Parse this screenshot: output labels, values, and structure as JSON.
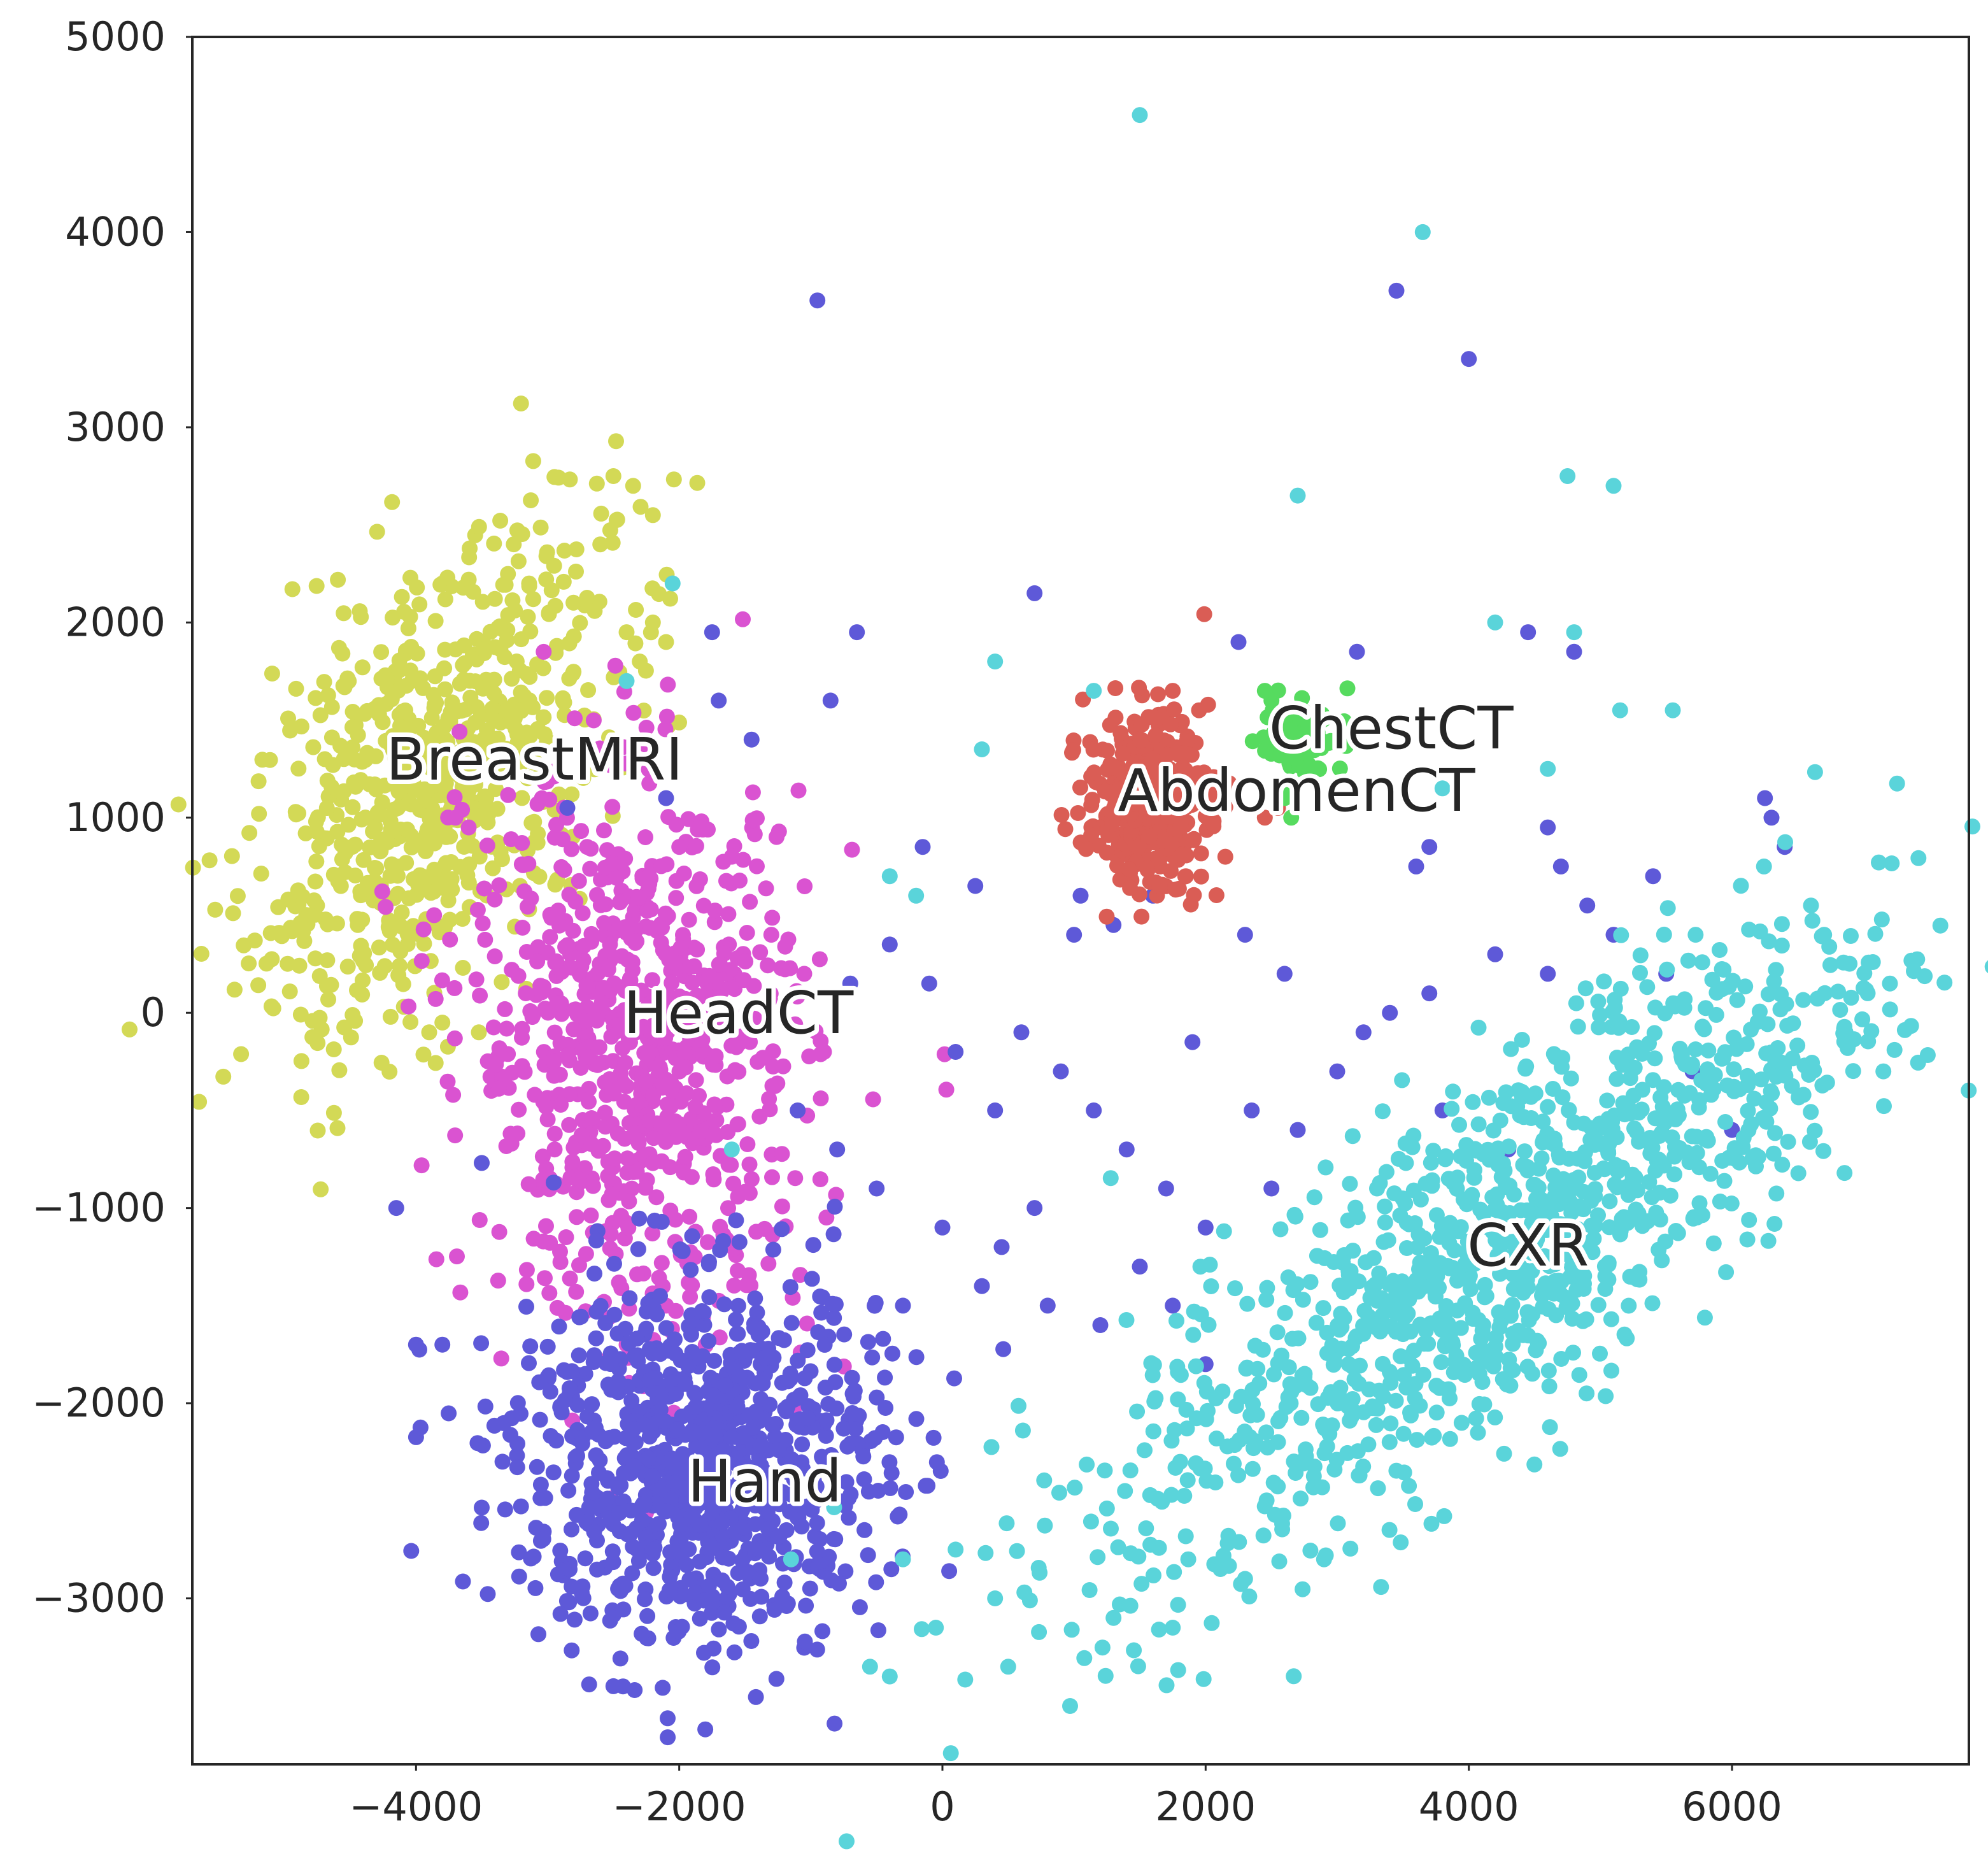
{
  "chart_data": {
    "type": "scatter",
    "title": "",
    "xlabel": "",
    "ylabel": "",
    "xlim": [
      -5700,
      7800
    ],
    "ylim": [
      -3850,
      5000
    ],
    "xticks": [
      -4000,
      -2000,
      0,
      2000,
      4000,
      6000
    ],
    "xtick_labels": [
      "−4000",
      "−2000",
      "0",
      "2000",
      "4000",
      "6000"
    ],
    "yticks": [
      -3000,
      -2000,
      -1000,
      0,
      1000,
      2000,
      3000,
      4000,
      5000
    ],
    "ytick_labels": [
      "−3000",
      "−2000",
      "−1000",
      "0",
      "1000",
      "2000",
      "3000",
      "4000",
      "5000"
    ],
    "grid": false,
    "legend": "none",
    "series": [
      {
        "name": "BreastMRI",
        "color": "#d3d956",
        "label_at": [
          -3100,
          1300
        ],
        "cluster": {
          "cx": -3900,
          "cy": 1150,
          "sx": 700,
          "sy": 650,
          "rho": 0.55,
          "n": 700
        },
        "points": [
          [
            -2500,
            2750
          ],
          [
            -2350,
            2700
          ],
          [
            -2200,
            2550
          ],
          [
            -2200,
            2000
          ],
          [
            -2400,
            1950
          ],
          [
            -2300,
            1800
          ],
          [
            -2100,
            1900
          ],
          [
            -2600,
            2400
          ],
          [
            -3900,
            -100
          ],
          [
            -3800,
            -50
          ]
        ]
      },
      {
        "name": "HeadCT",
        "color": "#da53d1",
        "label_at": [
          -1550,
          0
        ],
        "cluster": {
          "cx": -2300,
          "cy": -200,
          "sx": 650,
          "sy": 700,
          "rho": -0.1,
          "n": 800
        },
        "points": [
          [
            -3700,
            1000
          ],
          [
            -3600,
            950
          ],
          [
            -2700,
            850
          ],
          [
            -2000,
            850
          ],
          [
            -1600,
            800
          ],
          [
            -1300,
            400
          ],
          [
            -1050,
            200
          ],
          [
            -900,
            -200
          ],
          [
            -2100,
            -1500
          ],
          [
            -2400,
            -1700
          ]
        ]
      },
      {
        "name": "Hand",
        "color": "#5e59d8",
        "label_at": [
          -1350,
          -2400
        ],
        "cluster": {
          "cx": -1850,
          "cy": -2300,
          "sx": 700,
          "sy": 480,
          "rho": 0.0,
          "n": 900
        },
        "points": [
          [
            -950,
            3650
          ],
          [
            3450,
            3700
          ],
          [
            4000,
            3350
          ],
          [
            700,
            2150
          ],
          [
            -650,
            1950
          ],
          [
            -1750,
            1950
          ],
          [
            -850,
            1600
          ],
          [
            -1700,
            1600
          ],
          [
            -1450,
            1400
          ],
          [
            -2100,
            1100
          ],
          [
            -2850,
            1050
          ],
          [
            -4150,
            -1000
          ],
          [
            -4000,
            -1700
          ],
          [
            -3800,
            -1700
          ],
          [
            -2500,
            -3450
          ],
          [
            2250,
            1900
          ],
          [
            3150,
            1850
          ],
          [
            4450,
            1950
          ],
          [
            4800,
            1850
          ],
          [
            6250,
            1100
          ],
          [
            6300,
            1000
          ],
          [
            6400,
            850
          ],
          [
            5400,
            700
          ],
          [
            4600,
            950
          ],
          [
            4700,
            750
          ],
          [
            4900,
            550
          ],
          [
            3700,
            850
          ],
          [
            3600,
            750
          ],
          [
            2300,
            400
          ],
          [
            1600,
            600
          ],
          [
            1300,
            450
          ],
          [
            1050,
            600
          ],
          [
            1000,
            400
          ],
          [
            250,
            650
          ],
          [
            -150,
            850
          ],
          [
            -400,
            350
          ],
          [
            -700,
            150
          ],
          [
            -100,
            150
          ],
          [
            100,
            -200
          ],
          [
            400,
            -500
          ],
          [
            600,
            -100
          ],
          [
            900,
            -300
          ],
          [
            1150,
            -500
          ],
          [
            1400,
            -700
          ],
          [
            1700,
            -900
          ],
          [
            2000,
            -1100
          ],
          [
            2350,
            -500
          ],
          [
            2500,
            -900
          ],
          [
            2700,
            -600
          ],
          [
            3000,
            -300
          ],
          [
            3200,
            -100
          ],
          [
            3400,
            0
          ],
          [
            3700,
            100
          ],
          [
            4200,
            300
          ],
          [
            4600,
            200
          ],
          [
            5100,
            400
          ],
          [
            5500,
            200
          ],
          [
            700,
            -1000
          ],
          [
            450,
            -1200
          ],
          [
            300,
            -1400
          ],
          [
            800,
            -1500
          ],
          [
            1200,
            -1600
          ],
          [
            1500,
            -1300
          ],
          [
            1750,
            -1500
          ],
          [
            2000,
            -1800
          ],
          [
            -300,
            -1500
          ],
          [
            0,
            -1100
          ],
          [
            -500,
            -900
          ],
          [
            -800,
            -700
          ],
          [
            -1100,
            -500
          ],
          [
            3800,
            -500
          ],
          [
            4300,
            -700
          ],
          [
            5700,
            -300
          ],
          [
            6000,
            -600
          ],
          [
            1900,
            -150
          ],
          [
            2600,
            200
          ]
        ]
      },
      {
        "name": "AbdomenCT",
        "color": "#da5d55",
        "label_at": [
          2690,
          1140
        ],
        "cluster": {
          "cx": 1550,
          "cy": 1100,
          "sx": 230,
          "sy": 220,
          "rho": 0.0,
          "n": 350
        },
        "points": [
          [
            1650,
            650
          ],
          [
            1850,
            700
          ],
          [
            2150,
            800
          ],
          [
            2450,
            1000
          ],
          [
            2550,
            1050
          ],
          [
            1950,
            1550
          ],
          [
            1750,
            1650
          ]
        ]
      },
      {
        "name": "ChestCT",
        "color": "#56db5f",
        "label_at": [
          3410,
          1460
        ],
        "cluster": {
          "cx": 2750,
          "cy": 1400,
          "sx": 170,
          "sy": 110,
          "rho": 0.0,
          "n": 70
        },
        "points": [
          [
            2650,
            1000
          ],
          [
            2600,
            1100
          ],
          [
            2500,
            1600
          ],
          [
            2450,
            1650
          ]
        ]
      },
      {
        "name": "CXR",
        "color": "#5ad4da",
        "label_at": [
          4450,
          -1190
        ],
        "cluster": {
          "cx": 4250,
          "cy": -1200,
          "sx": 1500,
          "sy": 850,
          "rho": 0.82,
          "n": 1100
        },
        "points": [
          [
            1500,
            4600
          ],
          [
            3650,
            4000
          ],
          [
            2700,
            2650
          ],
          [
            4750,
            2750
          ],
          [
            5100,
            2700
          ],
          [
            4800,
            1950
          ],
          [
            4200,
            2000
          ],
          [
            5150,
            1550
          ],
          [
            5550,
            1550
          ],
          [
            4600,
            1250
          ],
          [
            3800,
            1150
          ],
          [
            -2050,
            2200
          ],
          [
            -2400,
            1700
          ],
          [
            400,
            1800
          ],
          [
            300,
            1350
          ],
          [
            1150,
            1650
          ],
          [
            -1600,
            -700
          ],
          [
            -400,
            700
          ],
          [
            -200,
            600
          ],
          [
            7200,
            150
          ],
          [
            7150,
            -300
          ],
          [
            6700,
            400
          ],
          [
            6600,
            550
          ],
          [
            -1150,
            -2800
          ],
          [
            -550,
            -3350
          ],
          [
            -400,
            -3400
          ],
          [
            -50,
            -3150
          ],
          [
            500,
            -3350
          ],
          [
            400,
            -3000
          ],
          [
            100,
            -2750
          ],
          [
            -300,
            -2800
          ],
          [
            1300,
            -3100
          ],
          [
            1750,
            -3150
          ],
          [
            2300,
            -2900
          ],
          [
            2900,
            -2800
          ]
        ]
      }
    ]
  }
}
